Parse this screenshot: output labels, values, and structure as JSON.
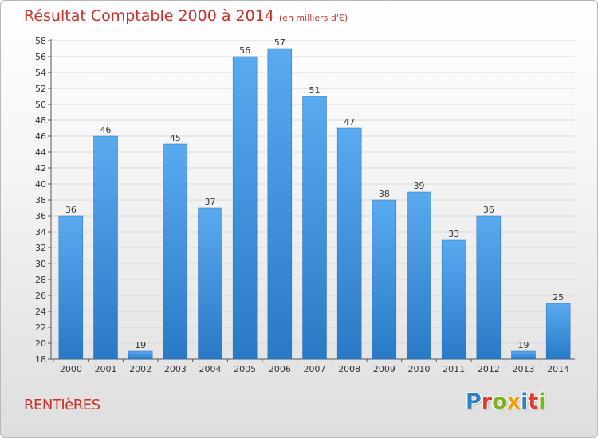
{
  "chart_data": {
    "type": "bar",
    "title": "Résultat Comptable 2000 à 2014",
    "subtitle": "(en milliers d'€)",
    "categories": [
      "2000",
      "2001",
      "2002",
      "2003",
      "2004",
      "2005",
      "2006",
      "2007",
      "2008",
      "2009",
      "2010",
      "2011",
      "2012",
      "2013",
      "2014"
    ],
    "values": [
      36,
      46,
      19,
      45,
      37,
      56,
      57,
      51,
      47,
      38,
      39,
      33,
      36,
      19,
      25
    ],
    "ylim": [
      18,
      58
    ],
    "yticks": [
      18,
      20,
      22,
      24,
      26,
      28,
      30,
      32,
      34,
      36,
      38,
      40,
      42,
      44,
      46,
      48,
      50,
      52,
      54,
      56,
      58
    ],
    "grid": true,
    "bar_color": "#3d8fd9"
  },
  "footer": {
    "town": "RENTIèRES",
    "logo_letters": [
      "P",
      "r",
      "o",
      "x",
      "i",
      "t",
      "i"
    ],
    "logo_colors": [
      "#2e7fc4",
      "#e6372c",
      "#7ab51d",
      "#f39c12",
      "#2e7fc4",
      "#e6372c",
      "#7ab51d"
    ]
  }
}
